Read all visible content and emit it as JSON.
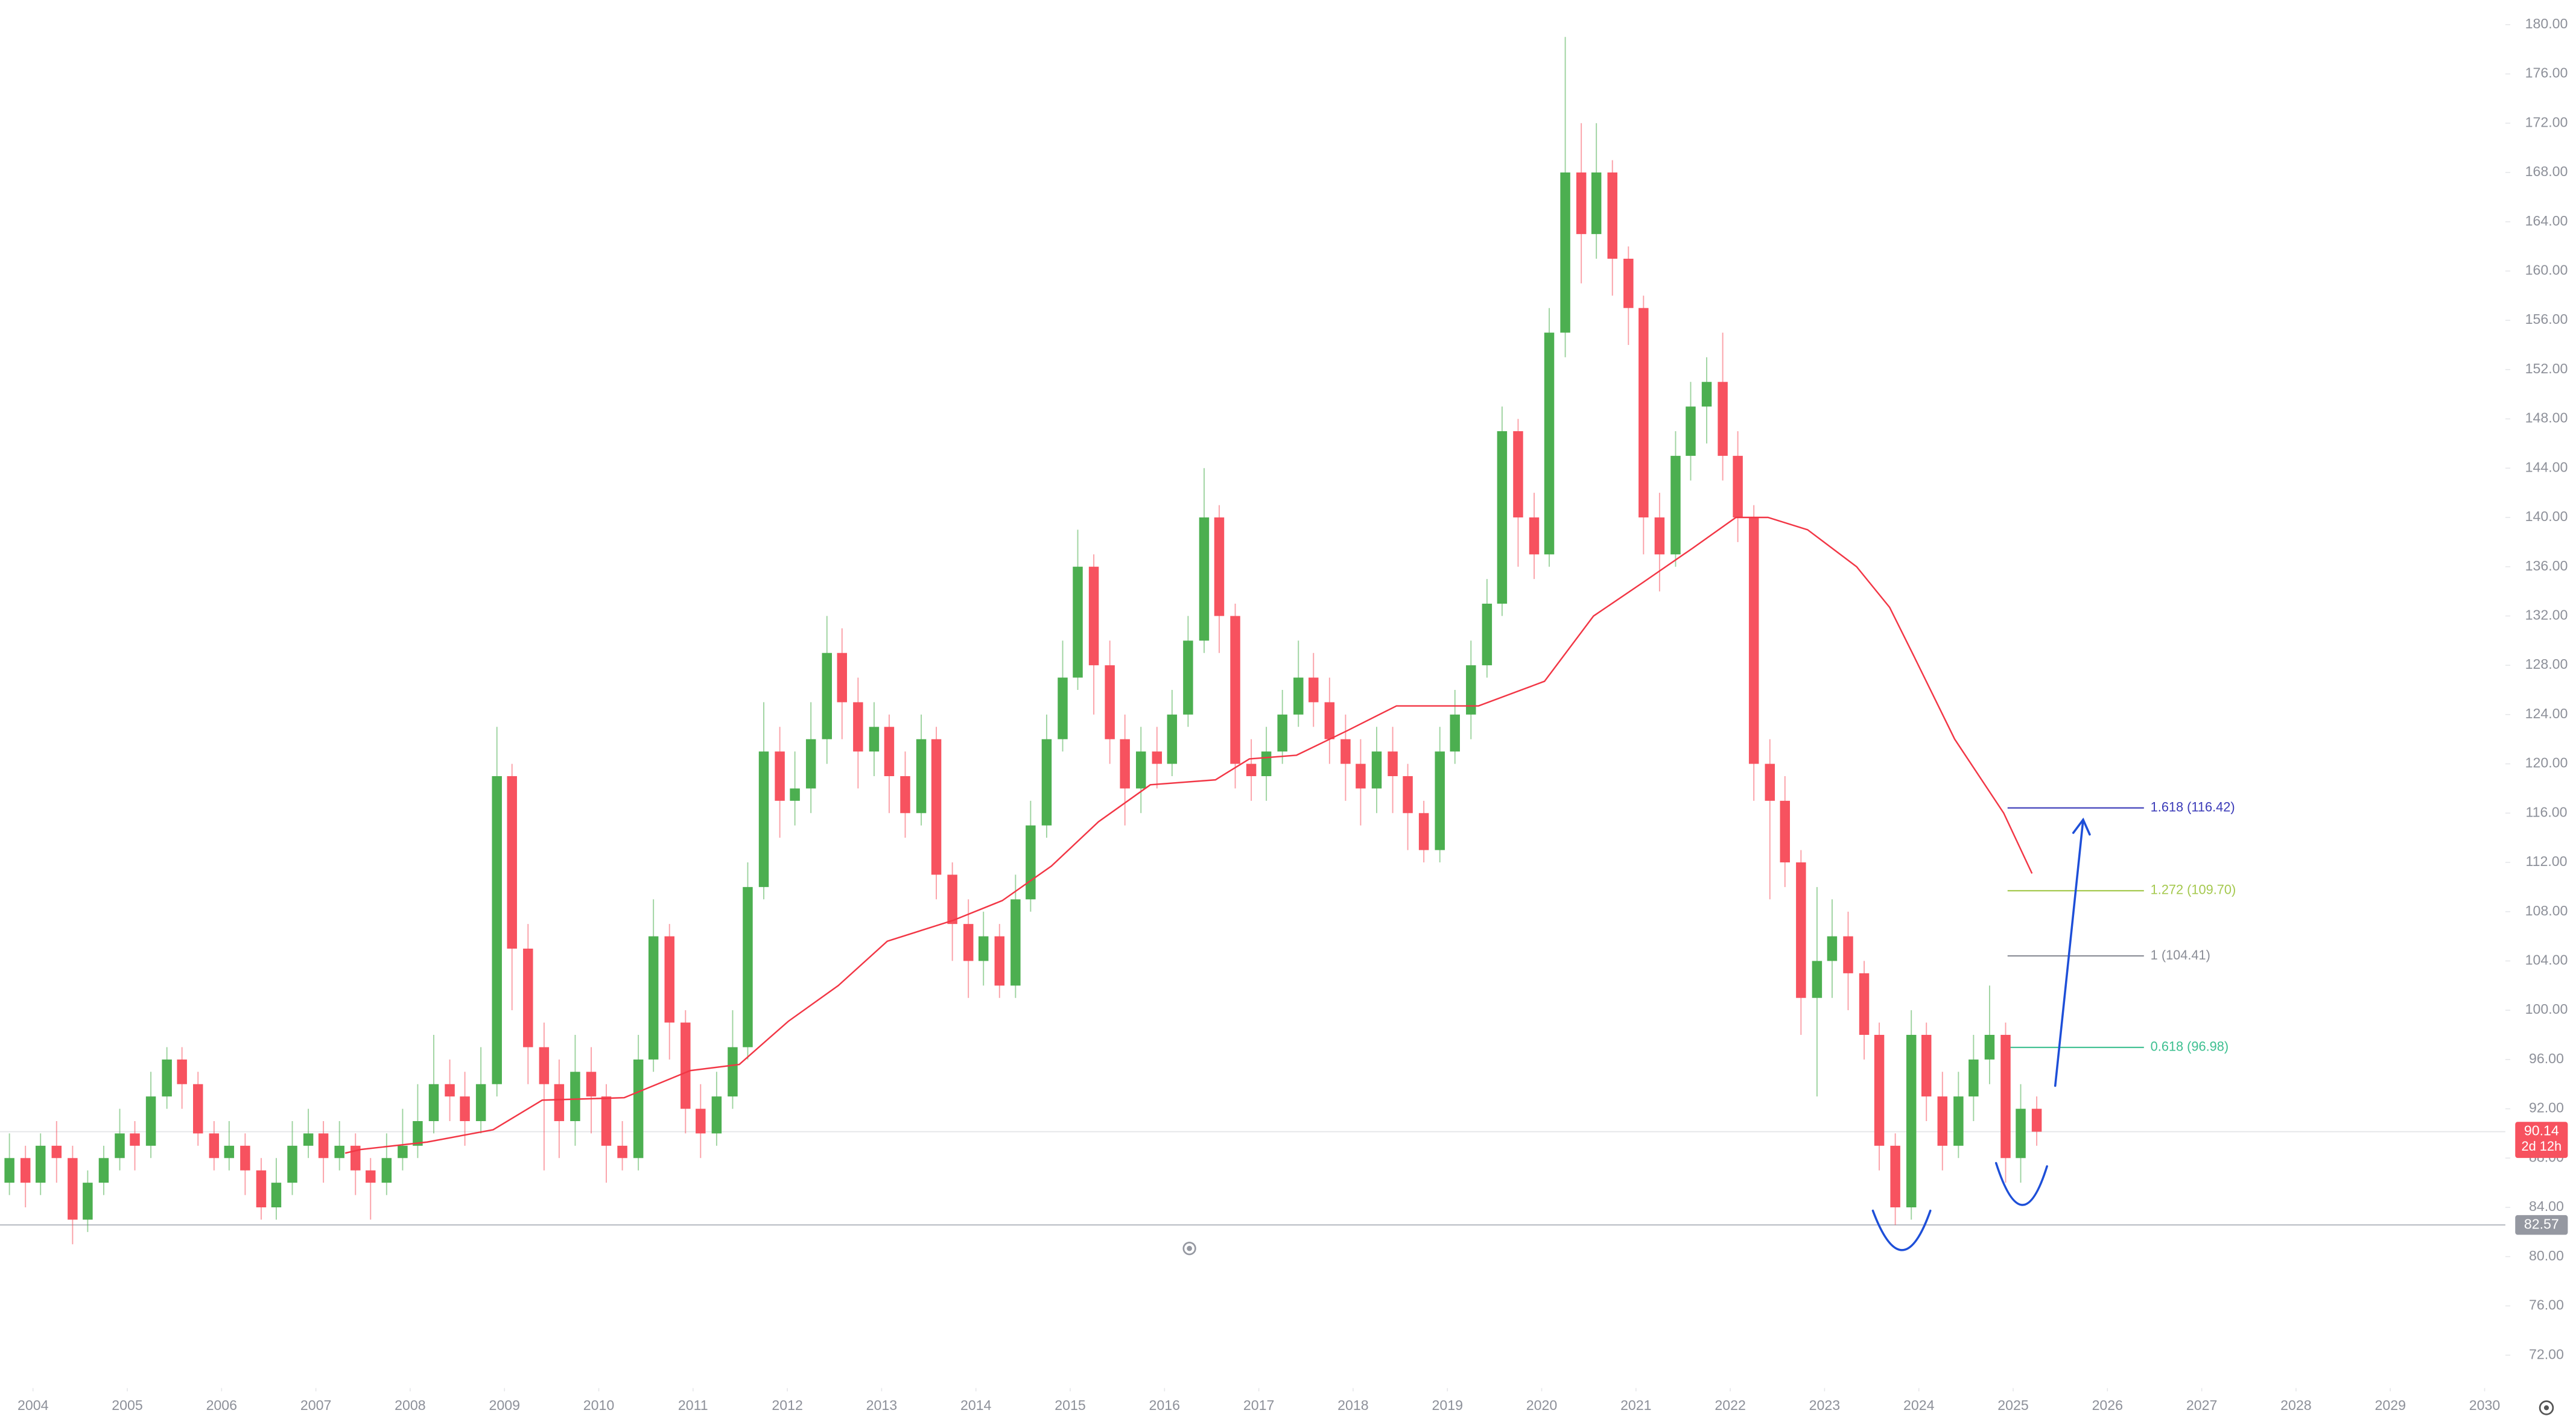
{
  "chart_data": {
    "type": "candlestick",
    "x": [
      2003.75,
      2003.92,
      2004.08,
      2004.25,
      2004.42,
      2004.58,
      2004.75,
      2004.92,
      2005.08,
      2005.25,
      2005.42,
      2005.58,
      2005.75,
      2005.92,
      2006.08,
      2006.25,
      2006.42,
      2006.58,
      2006.75,
      2006.92,
      2007.08,
      2007.25,
      2007.42,
      2007.58,
      2007.75,
      2007.92,
      2008.08,
      2008.25,
      2008.42,
      2008.58,
      2008.75,
      2008.92,
      2009.08,
      2009.25,
      2009.42,
      2009.58,
      2009.75,
      2009.92,
      2010.08,
      2010.25,
      2010.42,
      2010.58,
      2010.75,
      2010.92,
      2011.08,
      2011.25,
      2011.42,
      2011.58,
      2011.75,
      2011.92,
      2012.08,
      2012.25,
      2012.42,
      2012.58,
      2012.75,
      2012.92,
      2013.08,
      2013.25,
      2013.42,
      2013.58,
      2013.75,
      2013.92,
      2014.08,
      2014.25,
      2014.42,
      2014.58,
      2014.75,
      2014.92,
      2015.08,
      2015.25,
      2015.42,
      2015.58,
      2015.75,
      2015.92,
      2016.08,
      2016.25,
      2016.42,
      2016.58,
      2016.75,
      2016.92,
      2017.08,
      2017.25,
      2017.42,
      2017.58,
      2017.75,
      2017.92,
      2018.08,
      2018.25,
      2018.42,
      2018.58,
      2018.75,
      2018.92,
      2019.08,
      2019.25,
      2019.42,
      2019.58,
      2019.75,
      2019.92,
      2020.08,
      2020.25,
      2020.42,
      2020.58,
      2020.75,
      2020.92,
      2021.08,
      2021.25,
      2021.42,
      2021.58,
      2021.75,
      2021.92,
      2022.08,
      2022.25,
      2022.42,
      2022.58,
      2022.75,
      2022.92,
      2023.08,
      2023.25,
      2023.42,
      2023.58,
      2023.75,
      2023.92,
      2024.08,
      2024.25,
      2024.42,
      2024.58,
      2024.75,
      2024.92,
      2025.08,
      2025.25
    ],
    "open": [
      86,
      88,
      86,
      89,
      88,
      83,
      86,
      88,
      90,
      89,
      93,
      96,
      94,
      90,
      88,
      89,
      87,
      84,
      86,
      89,
      90,
      88,
      89,
      87,
      86,
      88,
      89,
      91,
      94,
      93,
      91,
      94,
      119,
      105,
      97,
      94,
      91,
      95,
      93,
      89,
      88,
      96,
      106,
      99,
      92,
      90,
      93,
      97,
      110,
      121,
      117,
      118,
      122,
      129,
      125,
      121,
      123,
      119,
      116,
      122,
      111,
      107,
      104,
      106,
      102,
      109,
      115,
      122,
      127,
      136,
      128,
      122,
      118,
      121,
      120,
      124,
      130,
      140,
      132,
      120,
      119,
      121,
      124,
      127,
      125,
      122,
      120,
      118,
      121,
      119,
      116,
      113,
      121,
      124,
      128,
      133,
      147,
      140,
      137,
      155,
      168,
      163,
      168,
      161,
      157,
      140,
      137,
      145,
      149,
      151,
      145,
      140,
      120,
      117,
      112,
      101,
      104,
      106,
      103,
      98,
      89,
      84,
      98,
      93,
      89,
      93,
      96,
      98,
      88,
      92
    ],
    "high": [
      90,
      89,
      90,
      91,
      89,
      87,
      89,
      92,
      91,
      95,
      97,
      97,
      95,
      91,
      91,
      90,
      88,
      88,
      91,
      92,
      91,
      91,
      90,
      88,
      90,
      92,
      94,
      98,
      96,
      95,
      97,
      123,
      120,
      107,
      99,
      96,
      98,
      97,
      94,
      91,
      98,
      109,
      107,
      100,
      94,
      95,
      100,
      112,
      125,
      123,
      121,
      125,
      132,
      131,
      127,
      125,
      124,
      121,
      124,
      123,
      112,
      109,
      108,
      107,
      111,
      117,
      124,
      130,
      139,
      137,
      130,
      124,
      123,
      123,
      126,
      132,
      144,
      141,
      133,
      122,
      123,
      126,
      130,
      129,
      127,
      124,
      122,
      123,
      123,
      120,
      117,
      123,
      126,
      130,
      135,
      149,
      148,
      142,
      157,
      179,
      172,
      172,
      169,
      162,
      158,
      142,
      147,
      151,
      153,
      155,
      147,
      141,
      122,
      119,
      113,
      110,
      109,
      108,
      104,
      99,
      90,
      100,
      99,
      95,
      95,
      98,
      102,
      99,
      94,
      93
    ],
    "low": [
      85,
      84,
      85,
      86,
      81,
      82,
      85,
      87,
      87,
      88,
      92,
      92,
      89,
      87,
      87,
      85,
      83,
      83,
      85,
      88,
      86,
      87,
      85,
      83,
      85,
      87,
      88,
      90,
      91,
      89,
      90,
      93,
      100,
      94,
      87,
      88,
      89,
      90,
      86,
      87,
      87,
      95,
      96,
      90,
      88,
      89,
      92,
      96,
      109,
      114,
      115,
      116,
      120,
      122,
      118,
      119,
      116,
      114,
      115,
      109,
      104,
      101,
      102,
      101,
      101,
      108,
      114,
      121,
      126,
      124,
      120,
      115,
      116,
      118,
      119,
      123,
      129,
      129,
      118,
      117,
      117,
      120,
      123,
      123,
      120,
      117,
      115,
      116,
      116,
      113,
      112,
      112,
      120,
      122,
      127,
      132,
      136,
      135,
      136,
      153,
      159,
      161,
      158,
      154,
      137,
      134,
      136,
      143,
      146,
      143,
      138,
      117,
      109,
      110,
      98,
      93,
      101,
      100,
      96,
      87,
      82.57,
      83,
      91,
      87,
      88,
      91,
      94,
      86,
      86,
      89
    ],
    "close": [
      88,
      86,
      89,
      88,
      83,
      86,
      88,
      90,
      89,
      93,
      96,
      94,
      90,
      88,
      89,
      87,
      84,
      86,
      89,
      90,
      88,
      89,
      87,
      86,
      88,
      89,
      91,
      94,
      93,
      91,
      94,
      119,
      105,
      97,
      94,
      91,
      95,
      93,
      89,
      88,
      96,
      106,
      99,
      92,
      90,
      93,
      97,
      110,
      121,
      117,
      118,
      122,
      129,
      125,
      121,
      123,
      119,
      116,
      122,
      111,
      107,
      104,
      106,
      102,
      109,
      115,
      122,
      127,
      136,
      128,
      122,
      118,
      121,
      120,
      124,
      130,
      140,
      132,
      120,
      119,
      121,
      124,
      127,
      125,
      122,
      120,
      118,
      121,
      119,
      116,
      113,
      121,
      124,
      128,
      133,
      147,
      140,
      137,
      155,
      168,
      163,
      168,
      161,
      157,
      140,
      137,
      145,
      149,
      151,
      145,
      140,
      120,
      117,
      112,
      101,
      104,
      106,
      103,
      98,
      89,
      84,
      98,
      93,
      89,
      93,
      96,
      98,
      88,
      92,
      90.14
    ],
    "up_color": "#4caf50",
    "down_color": "#f7525f",
    "moving_average": {
      "color": "#f23645",
      "x": [
        2007.31,
        2007.48,
        2008.18,
        2008.88,
        2009.4,
        2010.27,
        2010.62,
        2010.97,
        2011.49,
        2012.01,
        2012.54,
        2013.06,
        2013.76,
        2014.28,
        2014.8,
        2015.3,
        2015.85,
        2016.54,
        2016.9,
        2017.4,
        2017.94,
        2018.46,
        2019.33,
        2020.03,
        2020.55,
        2021.07,
        2021.6,
        2022.06,
        2022.4,
        2022.82,
        2023.34,
        2023.69,
        2023.95,
        2024.38,
        2024.9,
        2025.2
      ],
      "values": [
        88.4,
        88.7,
        89.3,
        90.3,
        92.7,
        92.9,
        94,
        95.1,
        95.6,
        99.1,
        102,
        105.6,
        107.3,
        108.9,
        111.7,
        115.3,
        118.3,
        118.7,
        120.4,
        120.7,
        122.7,
        124.7,
        124.7,
        126.7,
        132,
        134.7,
        137.5,
        140,
        140,
        139,
        136,
        132.7,
        128.7,
        122,
        116,
        111.1
      ]
    },
    "fib_levels": [
      {
        "label": "1.618 (116.42)",
        "value": 116.42,
        "color": "#3a3ab8"
      },
      {
        "label": "1.272 (109.70)",
        "value": 109.7,
        "color": "#a5c94f"
      },
      {
        "label": "1 (104.41)",
        "value": 104.41,
        "color": "#8a8d96"
      },
      {
        "label": "0.618 (96.98)",
        "value": 96.98,
        "color": "#3cbf8f"
      }
    ],
    "last_price": 90.14,
    "countdown": "2d 12h",
    "low_price": 82.57,
    "xlim": [
      2003.65,
      2030.22
    ],
    "xticks": [
      2004,
      2005,
      2006,
      2007,
      2008,
      2009,
      2010,
      2011,
      2012,
      2013,
      2014,
      2015,
      2016,
      2017,
      2018,
      2019,
      2020,
      2021,
      2022,
      2023,
      2024,
      2025,
      2026,
      2027,
      2028,
      2029,
      2030
    ],
    "ylim": [
      69.33,
      182
    ],
    "yticks": [
      {
        "value": 72,
        "label": "72.00"
      },
      {
        "value": 76,
        "label": "76.00"
      },
      {
        "value": 80,
        "label": "80.00"
      },
      {
        "value": 84,
        "label": "84.00"
      },
      {
        "value": 88,
        "label": "88.00"
      },
      {
        "value": 92,
        "label": "92.00"
      },
      {
        "value": 96,
        "label": "96.00"
      },
      {
        "value": 100,
        "label": "100.00"
      },
      {
        "value": 104,
        "label": "104.00"
      },
      {
        "value": 108,
        "label": "108.00"
      },
      {
        "value": 112,
        "label": "112.00"
      },
      {
        "value": 116,
        "label": "116.00"
      },
      {
        "value": 120,
        "label": "120.00"
      },
      {
        "value": 124,
        "label": "124.00"
      },
      {
        "value": 128,
        "label": "128.00"
      },
      {
        "value": 132,
        "label": "132.00"
      },
      {
        "value": 136,
        "label": "136.00"
      },
      {
        "value": 140,
        "label": "140.00"
      },
      {
        "value": 144,
        "label": "144.00"
      },
      {
        "value": 148,
        "label": "148.00"
      },
      {
        "value": 152,
        "label": "152.00"
      },
      {
        "value": 156,
        "label": "156.00"
      },
      {
        "value": 160,
        "label": "160.00"
      },
      {
        "value": 164,
        "label": "164.00"
      },
      {
        "value": 168,
        "label": "168.00"
      },
      {
        "value": 172,
        "label": "172.00"
      },
      {
        "value": 176,
        "label": "176.00"
      },
      {
        "value": 180,
        "label": "180.00"
      }
    ],
    "grid": false
  }
}
